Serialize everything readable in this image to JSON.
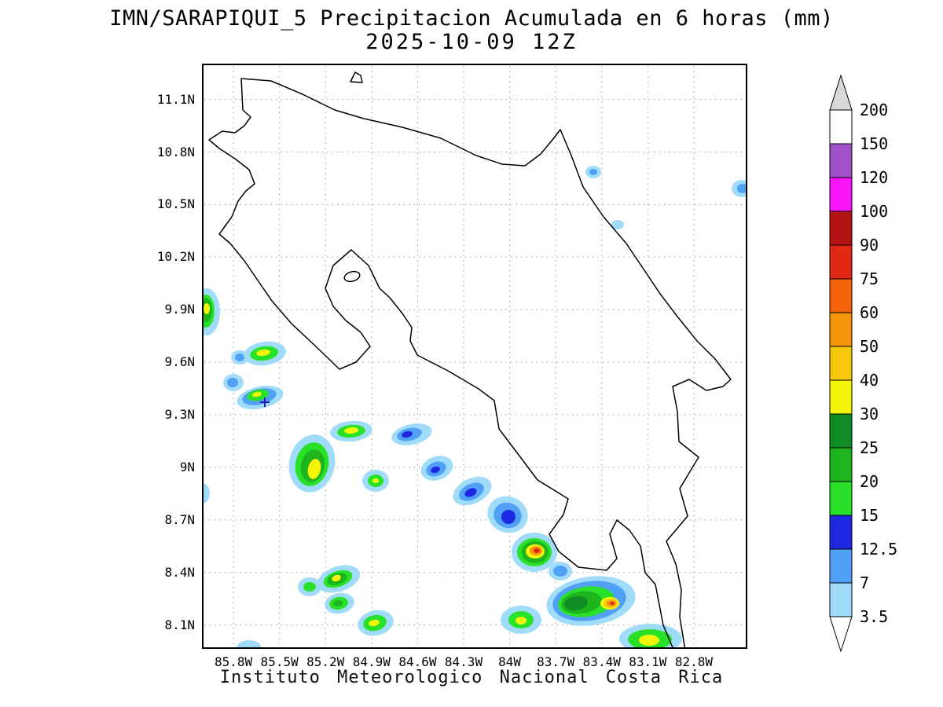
{
  "title": {
    "line1": "IMN/SARAPIQUI_5 Precipitacion Acumulada en 6 horas (mm)",
    "line2": "2025-10-09 12Z"
  },
  "footer": {
    "text": "Instituto Meteorologico Nacional Costa Rica"
  },
  "axes": {
    "lat_ticks": [
      "11.1N",
      "10.8N",
      "10.5N",
      "10.2N",
      "9.9N",
      "9.6N",
      "9.3N",
      "9N",
      "8.7N",
      "8.4N",
      "8.1N"
    ],
    "lon_ticks": [
      "85.8W",
      "85.5W",
      "85.2W",
      "84.9W",
      "84.6W",
      "84.3W",
      "84W",
      "83.7W",
      "83.4W",
      "83.1W",
      "82.8W"
    ]
  },
  "colorbar": {
    "labels": [
      "200",
      "150",
      "120",
      "100",
      "90",
      "75",
      "60",
      "50",
      "40",
      "30",
      "25",
      "20",
      "15",
      "12.5",
      "7",
      "3.5"
    ],
    "above_color": "#d9d9d9",
    "below_color": "#ffffff"
  },
  "chart_data": {
    "type": "heatmap",
    "title": "IMN/SARAPIQUI_5 Precipitacion Acumulada en 6 horas (mm)",
    "subtitle": "2025-10-09 12Z",
    "units": "mm",
    "lon_ticks_w": [
      85.8,
      85.5,
      85.2,
      84.9,
      84.6,
      84.3,
      84.0,
      83.7,
      83.4,
      83.1,
      82.8
    ],
    "lat_ticks_n": [
      11.1,
      10.8,
      10.5,
      10.2,
      9.9,
      9.6,
      9.3,
      9.0,
      8.7,
      8.4,
      8.1
    ],
    "lon_extent_w": [
      86.0,
      82.46
    ],
    "lat_extent_n": [
      7.97,
      11.3
    ],
    "levels_mm": [
      3.5,
      7,
      12.5,
      15,
      20,
      25,
      30,
      40,
      50,
      60,
      75,
      90,
      100,
      120,
      150,
      200
    ],
    "palette": {
      "3.5": "#a0dcfa",
      "7": "#50a0f5",
      "12.5": "#1e28e1",
      "15": "#28e128",
      "20": "#1eb41e",
      "25": "#0f8c23",
      "30": "#f5f50a",
      "40": "#f5c80a",
      "50": "#f5960a",
      "60": "#f5640a",
      "75": "#e12814",
      "90": "#b41414",
      "100": "#fa14fa",
      "120": "#a050c8",
      "150": "#ffffff",
      "200": "#d9d9d9"
    },
    "cells": [
      {
        "id": "c1",
        "lon_w": 85.97,
        "lat_n": 9.89,
        "max_mm": 30,
        "rings": [
          [
            "3.5",
            263,
            397,
            17,
            30,
            0
          ],
          [
            "15",
            262,
            396,
            11,
            21,
            0
          ],
          [
            "20",
            262,
            395,
            8,
            15,
            0
          ],
          [
            "30",
            263,
            393,
            4,
            7,
            0
          ]
        ]
      },
      {
        "id": "c2",
        "lon_w": 85.76,
        "lat_n": 9.63,
        "max_mm": 7,
        "rings": [
          [
            "3.5",
            305,
            455,
            11,
            9,
            0
          ],
          [
            "7",
            305,
            455,
            6,
            5,
            0
          ]
        ]
      },
      {
        "id": "c3",
        "lon_w": 85.6,
        "lat_n": 9.65,
        "max_mm": 30,
        "rings": [
          [
            "3.5",
            337,
            450,
            27,
            15,
            -8
          ],
          [
            "15",
            336,
            450,
            18,
            9,
            -8
          ],
          [
            "30",
            335,
            449,
            9,
            4,
            -8
          ]
        ]
      },
      {
        "id": "c4",
        "lon_w": 85.8,
        "lat_n": 9.48,
        "max_mm": 7,
        "rings": [
          [
            "3.5",
            297,
            487,
            13,
            11,
            0
          ],
          [
            "7",
            296,
            487,
            7,
            6,
            0
          ]
        ]
      },
      {
        "id": "c5",
        "lon_w": 85.63,
        "lat_n": 9.4,
        "max_mm": 30,
        "rings": [
          [
            "3.5",
            331,
            506,
            30,
            14,
            -12
          ],
          [
            "7",
            330,
            505,
            22,
            10,
            -12
          ],
          [
            "15",
            328,
            503,
            14,
            7,
            -12
          ],
          [
            "30",
            327,
            502,
            6,
            3,
            -12
          ]
        ]
      },
      {
        "id": "c6",
        "lon_w": 85.03,
        "lat_n": 9.21,
        "max_mm": 30,
        "rings": [
          [
            "3.5",
            447,
            549,
            27,
            13,
            -5
          ],
          [
            "15",
            447,
            549,
            18,
            8,
            -5
          ],
          [
            "30",
            447,
            548,
            9,
            4,
            -5
          ]
        ]
      },
      {
        "id": "c7",
        "lon_w": 84.64,
        "lat_n": 9.19,
        "max_mm": 12.5,
        "rings": [
          [
            "3.5",
            524,
            553,
            26,
            13,
            -12
          ],
          [
            "7",
            521,
            553,
            16,
            8,
            -12
          ],
          [
            "12.5",
            518,
            553,
            7,
            4,
            -12
          ]
        ]
      },
      {
        "id": "c8",
        "lon_w": 85.29,
        "lat_n": 9.02,
        "max_mm": 30,
        "rings": [
          [
            "3.5",
            397,
            590,
            29,
            37,
            12
          ],
          [
            "15",
            397,
            591,
            21,
            28,
            12
          ],
          [
            "20",
            398,
            593,
            15,
            21,
            12
          ],
          [
            "30",
            400,
            597,
            8,
            13,
            12
          ]
        ]
      },
      {
        "id": "c9",
        "lon_w": 84.87,
        "lat_n": 8.92,
        "max_mm": 30,
        "rings": [
          [
            "3.5",
            478,
            612,
            17,
            14,
            0
          ],
          [
            "15",
            478,
            612,
            10,
            8,
            0
          ],
          [
            "30",
            478,
            612,
            4,
            3,
            0
          ]
        ]
      },
      {
        "id": "c10",
        "lon_w": 84.47,
        "lat_n": 8.99,
        "max_mm": 12.5,
        "rings": [
          [
            "3.5",
            556,
            596,
            21,
            15,
            -20
          ],
          [
            "7",
            555,
            597,
            13,
            9,
            -20
          ],
          [
            "12.5",
            554,
            598,
            6,
            4,
            -20
          ]
        ]
      },
      {
        "id": "c11",
        "lon_w": 84.25,
        "lat_n": 8.87,
        "max_mm": 12.5,
        "rings": [
          [
            "3.5",
            601,
            625,
            26,
            16,
            -25
          ],
          [
            "7",
            600,
            626,
            17,
            10,
            -25
          ],
          [
            "12.5",
            599,
            627,
            8,
            5,
            -25
          ]
        ]
      },
      {
        "id": "c12",
        "lon_w": 84.01,
        "lat_n": 8.73,
        "max_mm": 12.5,
        "rings": [
          [
            "3.5",
            646,
            655,
            26,
            23,
            20
          ],
          [
            "7",
            646,
            656,
            18,
            16,
            20
          ],
          [
            "12.5",
            647,
            658,
            9,
            9,
            0
          ]
        ]
      },
      {
        "id": "c13",
        "lon_w": 83.84,
        "lat_n": 8.52,
        "max_mm": 75,
        "rings": [
          [
            "3.5",
            680,
            703,
            29,
            25,
            0
          ],
          [
            "15",
            680,
            703,
            22,
            18,
            0
          ],
          [
            "20",
            681,
            703,
            17,
            14,
            0
          ],
          [
            "30",
            681,
            702,
            12,
            9,
            0
          ],
          [
            "50",
            682,
            701,
            8,
            6,
            0
          ],
          [
            "75",
            683,
            701,
            4,
            3,
            0
          ]
        ]
      },
      {
        "id": "c14",
        "lon_w": 83.67,
        "lat_n": 8.41,
        "max_mm": 7,
        "rings": [
          [
            "3.5",
            713,
            727,
            15,
            12,
            0
          ],
          [
            "7",
            713,
            727,
            9,
            7,
            0
          ]
        ]
      },
      {
        "id": "c15",
        "lon_w": 85.11,
        "lat_n": 8.36,
        "max_mm": 30,
        "rings": [
          [
            "3.5",
            431,
            737,
            28,
            16,
            -18
          ],
          [
            "15",
            430,
            737,
            19,
            10,
            -18
          ],
          [
            "20",
            429,
            737,
            13,
            7,
            -18
          ],
          [
            "30",
            428,
            736,
            6,
            4,
            -18
          ]
        ]
      },
      {
        "id": "c16",
        "lon_w": 85.3,
        "lat_n": 8.32,
        "max_mm": 15,
        "rings": [
          [
            "3.5",
            394,
            747,
            15,
            12,
            0
          ],
          [
            "15",
            394,
            747,
            8,
            6,
            0
          ]
        ]
      },
      {
        "id": "c17",
        "lon_w": 85.11,
        "lat_n": 8.22,
        "max_mm": 20,
        "rings": [
          [
            "3.5",
            432,
            768,
            19,
            13,
            -10
          ],
          [
            "15",
            431,
            768,
            12,
            8,
            -10
          ],
          [
            "20",
            430,
            768,
            6,
            4,
            -10
          ]
        ]
      },
      {
        "id": "c18",
        "lon_w": 84.87,
        "lat_n": 8.11,
        "max_mm": 30,
        "rings": [
          [
            "3.5",
            478,
            793,
            23,
            16,
            -12
          ],
          [
            "15",
            477,
            793,
            15,
            10,
            -12
          ],
          [
            "30",
            476,
            793,
            7,
            4,
            -12
          ]
        ]
      },
      {
        "id": "c19",
        "lon_w": 83.93,
        "lat_n": 8.13,
        "max_mm": 30,
        "rings": [
          [
            "3.5",
            663,
            789,
            26,
            18,
            0
          ],
          [
            "15",
            663,
            789,
            16,
            11,
            0
          ],
          [
            "30",
            663,
            790,
            7,
            5,
            0
          ]
        ]
      },
      {
        "id": "c20",
        "lon_w": 83.47,
        "lat_n": 8.24,
        "max_mm": 75,
        "rings": [
          [
            "3.5",
            752,
            765,
            57,
            31,
            -8
          ],
          [
            "7",
            750,
            765,
            47,
            25,
            -8
          ],
          [
            "15",
            746,
            766,
            36,
            19,
            -8
          ],
          [
            "20",
            740,
            767,
            26,
            14,
            -8
          ],
          [
            "25",
            733,
            768,
            15,
            9,
            -8
          ],
          [
            "30",
            776,
            768,
            12,
            8,
            0
          ],
          [
            "40",
            777,
            768,
            9,
            6,
            0
          ],
          [
            "50",
            778,
            768,
            6,
            4,
            0
          ],
          [
            "75",
            779,
            768,
            3,
            2,
            0
          ]
        ]
      },
      {
        "id": "c21",
        "lon_w": 83.08,
        "lat_n": 8.01,
        "max_mm": 30,
        "rings": [
          [
            "3.5",
            828,
            813,
            40,
            19,
            0
          ],
          [
            "15",
            827,
            814,
            28,
            13,
            0
          ],
          [
            "30",
            826,
            815,
            13,
            7,
            0
          ]
        ]
      },
      {
        "id": "c22",
        "lon_w": 83.46,
        "lat_n": 10.69,
        "max_mm": 7,
        "rings": [
          [
            "3.5",
            755,
            219,
            10,
            8,
            0
          ],
          [
            "7",
            755,
            219,
            5,
            4,
            0
          ]
        ]
      },
      {
        "id": "c23",
        "lon_w": 82.49,
        "lat_n": 10.59,
        "max_mm": 7,
        "rings": [
          [
            "3.5",
            944,
            240,
            13,
            11,
            0
          ],
          [
            "7",
            945,
            240,
            7,
            6,
            0
          ]
        ]
      },
      {
        "id": "c24",
        "lon_w": 83.3,
        "lat_n": 10.39,
        "max_mm": 3.5,
        "rings": [
          [
            "3.5",
            786,
            286,
            8,
            6,
            0
          ]
        ]
      },
      {
        "id": "c25",
        "lon_w": 85.99,
        "lat_n": 8.85,
        "max_mm": 3.5,
        "rings": [
          [
            "3.5",
            258,
            628,
            9,
            13,
            0
          ]
        ]
      },
      {
        "id": "c26",
        "lon_w": 85.7,
        "lat_n": 7.98,
        "max_mm": 3.5,
        "rings": [
          [
            "3.5",
            317,
            823,
            15,
            8,
            0
          ]
        ]
      }
    ]
  }
}
